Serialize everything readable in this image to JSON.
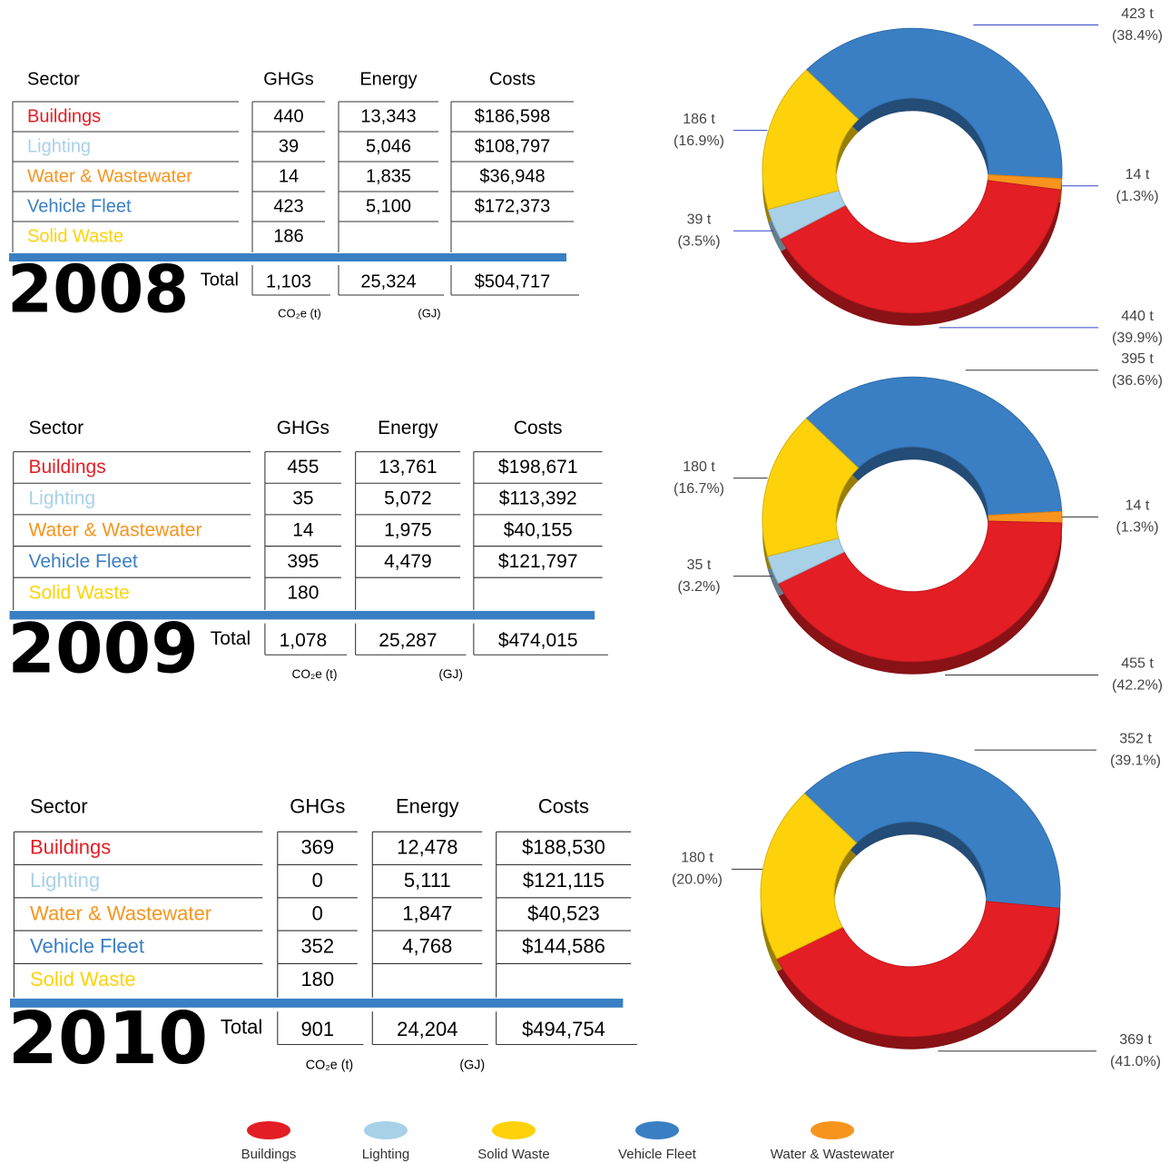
{
  "tables": [
    {
      "year": "2008",
      "headers": [
        "Sector",
        "GHGs",
        "Energy",
        "Costs"
      ],
      "rows": [
        [
          "Buildings",
          "440",
          "13,343",
          "$186,598"
        ],
        [
          "Lighting",
          "39",
          "5,046",
          "$108,797"
        ],
        [
          "Water & Wastewater",
          "14",
          "1,835",
          "$36,948"
        ],
        [
          "Vehicle Fleet",
          "423",
          "5,100",
          "$172,373"
        ],
        [
          "Solid Waste",
          "186",
          null,
          null
        ]
      ],
      "total_label": "Total",
      "totals": [
        "1,103",
        "25,324",
        "$504,717"
      ],
      "units": [
        "CO₂e (t)",
        "(GJ)"
      ]
    },
    {
      "year": "2009",
      "headers": [
        "Sector",
        "GHGs",
        "Energy",
        "Costs"
      ],
      "rows": [
        [
          "Buildings",
          "455",
          "13,761",
          "$198,671"
        ],
        [
          "Lighting",
          "35",
          "5,072",
          "$113,392"
        ],
        [
          "Water & Wastewater",
          "14",
          "1,975",
          "$40,155"
        ],
        [
          "Vehicle Fleet",
          "395",
          "4,479",
          "$121,797"
        ],
        [
          "Solid Waste",
          "180",
          null,
          null
        ]
      ],
      "total_label": "Total",
      "totals": [
        "1,078",
        "25,287",
        "$474,015"
      ],
      "units": [
        "CO₂e (t)",
        "(GJ)"
      ]
    },
    {
      "year": "2010",
      "headers": [
        "Sector",
        "GHGs",
        "Energy",
        "Costs"
      ],
      "rows": [
        [
          "Buildings",
          "369",
          "12,478",
          "$188,530"
        ],
        [
          "Lighting",
          "0",
          "5,111",
          "$121,115"
        ],
        [
          "Water & Wastewater",
          "0",
          "1,847",
          "$40,523"
        ],
        [
          "Vehicle Fleet",
          "352",
          "4,768",
          "$144,586"
        ],
        [
          "Solid Waste",
          "180",
          null,
          null
        ]
      ],
      "total_label": "Total",
      "totals": [
        "901",
        "24,204",
        "$494,754"
      ],
      "units": [
        "CO₂e (t)",
        "(GJ)"
      ]
    }
  ],
  "chart_data": [
    {
      "type": "donut",
      "categories": [
        "Vehicle Fleet",
        "Water & Wastewater",
        "Buildings",
        "Lighting",
        "Solid Waste"
      ],
      "values": [
        423,
        14,
        440,
        39,
        186
      ],
      "value_labels": [
        "423 t",
        "14 t",
        "440 t",
        "39 t",
        "186 t"
      ],
      "percent_labels": [
        "(38.4%)",
        "(1.3%)",
        "(39.9%)",
        "(3.5%)",
        "(16.9%)"
      ],
      "colors": [
        "#3a7fc4",
        "#f7941d",
        "#e31e24",
        "#a8d1e8",
        "#fdd20a"
      ],
      "leader_color": "#3344cc"
    },
    {
      "type": "donut",
      "categories": [
        "Vehicle Fleet",
        "Water & Wastewater",
        "Buildings",
        "Lighting",
        "Solid Waste"
      ],
      "values": [
        395,
        14,
        455,
        35,
        180
      ],
      "value_labels": [
        "395 t",
        "14 t",
        "455 t",
        "35 t",
        "180 t"
      ],
      "percent_labels": [
        "(36.6%)",
        "(1.3%)",
        "(42.2%)",
        "(3.2%)",
        "(16.7%)"
      ],
      "colors": [
        "#3a7fc4",
        "#f7941d",
        "#e31e24",
        "#a8d1e8",
        "#fdd20a"
      ],
      "leader_color": "#333333"
    },
    {
      "type": "donut",
      "categories": [
        "Vehicle Fleet",
        "Buildings",
        "Solid Waste"
      ],
      "values": [
        352,
        369,
        180
      ],
      "value_labels": [
        "352 t",
        "369 t",
        "180 t"
      ],
      "percent_labels": [
        "(39.1%)",
        "(41.0%)",
        "(20.0%)"
      ],
      "colors": [
        "#3a7fc4",
        "#e31e24",
        "#fdd20a"
      ],
      "leader_color": "#333333"
    }
  ],
  "legend": [
    {
      "name": "Buildings",
      "color": "#e31e24"
    },
    {
      "name": "Lighting",
      "color": "#a8d1e8"
    },
    {
      "name": "Solid Waste",
      "color": "#fdd20a"
    },
    {
      "name": "Vehicle Fleet",
      "color": "#3a7fc4"
    },
    {
      "name": "Water & Wastewater",
      "color": "#f7941d"
    }
  ]
}
